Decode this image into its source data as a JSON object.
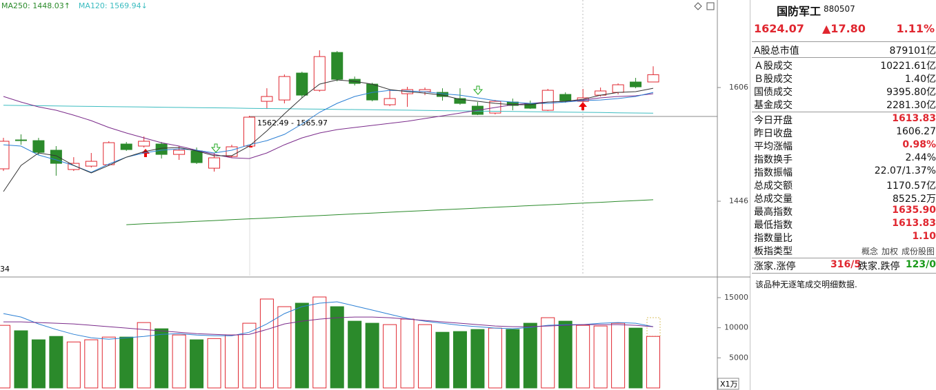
{
  "chart_data": [
    {
      "type": "candlestick",
      "open": [
        1491.6,
        1532.3,
        1531.3,
        1517.8,
        1490.6,
        1495.4,
        1497.4,
        1526.5,
        1523.6,
        1526.5,
        1511.9,
        1516.8,
        1492.5,
        1509.0,
        1523.6,
        1586.6,
        1588.5,
        1626.4,
        1602.1,
        1655.4,
        1617.6,
        1610.8,
        1581.8,
        1597.3,
        1600.2,
        1599.2,
        1590.5,
        1579.8,
        1570.1,
        1585.6,
        1583.7,
        1574.0,
        1596.3,
        1586.6,
        1595.3,
        1599.2,
        1613.8,
        1613.83
      ],
      "high": [
        1535.2,
        1540.1,
        1535.2,
        1523.6,
        1508.0,
        1513.9,
        1530.4,
        1529.4,
        1537.2,
        1529.4,
        1523.6,
        1521.6,
        1513.9,
        1525.5,
        1566.2,
        1605.0,
        1624.4,
        1628.3,
        1658.4,
        1657.4,
        1621.5,
        1612.8,
        1603.1,
        1607.0,
        1606.0,
        1605.0,
        1605.0,
        1585.6,
        1588.5,
        1590.5,
        1587.6,
        1604.1,
        1599.2,
        1604.1,
        1606.0,
        1611.8,
        1619.6,
        1635.9
      ],
      "low": [
        1488.6,
        1525.5,
        1510.9,
        1481.9,
        1488.6,
        1493.5,
        1496.4,
        1516.8,
        1521.6,
        1506.1,
        1504.2,
        1498.4,
        1487.7,
        1507.1,
        1521.6,
        1575.9,
        1583.7,
        1591.5,
        1600.2,
        1614.7,
        1608.9,
        1586.6,
        1579.8,
        1578.8,
        1595.3,
        1587.6,
        1581.8,
        1567.2,
        1568.2,
        1574.0,
        1575.9,
        1573.0,
        1584.7,
        1581.8,
        1593.4,
        1596.3,
        1605.0,
        1613.83
      ],
      "close": [
        1530.4,
        1531.3,
        1514.8,
        1499.3,
        1499.3,
        1502.2,
        1528.4,
        1518.7,
        1530.4,
        1511.9,
        1517.8,
        1500.3,
        1507.1,
        1522.6,
        1564.3,
        1593.4,
        1621.5,
        1595.3,
        1649.6,
        1617.6,
        1611.8,
        1588.5,
        1590.5,
        1603.1,
        1603.1,
        1593.4,
        1583.7,
        1568.2,
        1586.6,
        1580.8,
        1576.9,
        1602.1,
        1587.6,
        1591.5,
        1601.2,
        1609.9,
        1607.0,
        1624.07
      ],
      "up_color": "#e0262f",
      "down_color": "#2b8a2b",
      "ylim": [
        1341.3,
        1729.2
      ],
      "yticks": [
        1446,
        1606
      ],
      "lines": [
        {
          "label": "MA250: 1448.03↑",
          "color": "#2a8a2a",
          "values": [
            null,
            null,
            null,
            null,
            null,
            null,
            null,
            1413.0,
            1414.2,
            1415.3,
            1416.5,
            1417.7,
            1418.8,
            1420.0,
            1421.2,
            1422.3,
            1423.5,
            1424.7,
            1425.8,
            1427.0,
            1428.2,
            1429.3,
            1430.5,
            1431.7,
            1432.8,
            1434.0,
            1435.2,
            1436.3,
            1437.5,
            1438.7,
            1439.8,
            1441.0,
            1442.2,
            1443.4,
            1444.5,
            1445.7,
            1446.9,
            1448.03
          ]
        },
        {
          "label": "MA120: 1569.94↓",
          "color": "#3bbcc0",
          "values": [
            1581.0,
            1580.7,
            1580.4,
            1580.1,
            1579.8,
            1579.5,
            1579.2,
            1578.9,
            1578.6,
            1578.3,
            1578.0,
            1577.7,
            1577.4,
            1577.1,
            1576.8,
            1576.5,
            1576.2,
            1575.9,
            1575.6,
            1575.3,
            1575.0,
            1574.7,
            1574.4,
            1574.1,
            1573.8,
            1573.5,
            1573.2,
            1572.9,
            1572.6,
            1572.3,
            1572.0,
            1571.7,
            1571.4,
            1571.1,
            1570.8,
            1570.5,
            1570.2,
            1569.94
          ]
        },
        {
          "color": "#7a2a8a",
          "values": [
            1593.4,
            1585.6,
            1578.8,
            1574.0,
            1567.2,
            1559.4,
            1549.8,
            1542.0,
            1535.2,
            1528.4,
            1523.6,
            1517.8,
            1511.9,
            1507.1,
            1506.1,
            1513.9,
            1525.5,
            1535.2,
            1542.0,
            1546.8,
            1549.8,
            1552.7,
            1555.6,
            1558.5,
            1562.4,
            1566.2,
            1570.1,
            1574.0,
            1577.9,
            1581.8,
            1583.7,
            1585.6,
            1586.6,
            1588.5,
            1591.5,
            1593.4,
            1594.4,
            1597.3
          ]
        },
        {
          "color": "#2a7fd4",
          "values": [
            1525.5,
            1523.6,
            1511.0,
            1504.2,
            1496.4,
            1486.7,
            1498.4,
            1508.0,
            1513.9,
            1517.8,
            1519.7,
            1517.8,
            1513.9,
            1517.8,
            1525.5,
            1531.3,
            1540.1,
            1554.6,
            1571.1,
            1583.7,
            1593.4,
            1599.2,
            1602.1,
            1601.2,
            1600.2,
            1597.3,
            1595.3,
            1591.5,
            1587.6,
            1585.6,
            1583.7,
            1583.7,
            1585.6,
            1587.6,
            1588.5,
            1590.5,
            1593.4,
            1599.2
          ]
        },
        {
          "color": "#333333",
          "values": [
            1459.6,
            1496.4,
            1513.9,
            1510.0,
            1496.4,
            1485.8,
            1496.4,
            1508.0,
            1515.8,
            1520.6,
            1521.6,
            1516.8,
            1510.0,
            1510.0,
            1523.6,
            1544.9,
            1569.1,
            1591.5,
            1610.8,
            1616.7,
            1614.7,
            1610.8,
            1603.1,
            1600.2,
            1598.2,
            1595.3,
            1589.5,
            1586.6,
            1583.7,
            1581.8,
            1581.8,
            1585.6,
            1586.6,
            1589.5,
            1595.3,
            1599.2,
            1600.2,
            1605.0
          ]
        }
      ],
      "annotations": [
        "1562.49 - 1565.97",
        "34"
      ]
    },
    {
      "type": "bar",
      "values": [
        10400,
        9500,
        8000,
        8560,
        7640,
        8000,
        8450,
        8450,
        10860,
        9830,
        8800,
        8000,
        8200,
        8800,
        10750,
        14770,
        13500,
        14080,
        15110,
        13500,
        11090,
        10750,
        10520,
        11440,
        10520,
        9250,
        9370,
        9710,
        9940,
        9710,
        10750,
        11670,
        11090,
        10400,
        10290,
        10750,
        9940,
        8560
      ],
      "ylim": [
        0,
        18200
      ],
      "yticks": [
        5000,
        10000,
        15000
      ],
      "unit": "X1万",
      "lines": [
        {
          "color": "#2a7fd4",
          "values": [
            12356,
            11781,
            10632,
            9712,
            8908,
            8333,
            8103,
            8333,
            8563,
            8908,
            9023,
            8793,
            8678,
            8678,
            9253,
            10632,
            12356,
            13505,
            14080,
            14310,
            13620,
            12931,
            12241,
            11551,
            11092,
            10747,
            10402,
            10172,
            9942,
            9827,
            10057,
            10402,
            10517,
            10517,
            10747,
            10862,
            10747,
            10172
          ]
        },
        {
          "color": "#7a2a8a",
          "values": [
            10977,
            10977,
            10862,
            10747,
            10632,
            10402,
            10172,
            9942,
            9712,
            9483,
            9253,
            9023,
            8908,
            8793,
            8908,
            9712,
            10632,
            11092,
            11437,
            11666,
            11781,
            11781,
            11666,
            11437,
            11207,
            10977,
            10747,
            10517,
            10287,
            10172,
            10172,
            10287,
            10402,
            10517,
            10517,
            10517,
            10402,
            10172
          ]
        }
      ]
    }
  ],
  "quote_panel": {
    "name": "国防军工",
    "code": "880507",
    "price": "1624.07",
    "change": "▲17.80",
    "change_pct": "1.11%",
    "groups": [
      [
        {
          "label": "A股总市值",
          "value": "879101亿"
        }
      ],
      [
        {
          "label": "Ａ股成交",
          "value": "10221.61亿"
        },
        {
          "label": "Ｂ股成交",
          "value": "1.40亿"
        },
        {
          "label": "国债成交",
          "value": "9395.80亿"
        },
        {
          "label": "基金成交",
          "value": "2281.30亿"
        }
      ],
      [
        {
          "label": "今日开盘",
          "value": "1613.83",
          "color": "#e0262f"
        },
        {
          "label": "昨日收盘",
          "value": "1606.27"
        },
        {
          "label": "平均涨幅",
          "value": "0.98%",
          "color": "#e0262f"
        },
        {
          "label": "指数换手",
          "value": "2.44%"
        },
        {
          "label": "指数振幅",
          "value": "22.07/1.37%"
        },
        {
          "label": "总成交额",
          "value": "1170.57亿"
        },
        {
          "label": "总成交量",
          "value": "8525.2万"
        },
        {
          "label": "最高指数",
          "value": "1635.90",
          "color": "#e0262f"
        },
        {
          "label": "最低指数",
          "value": "1613.83",
          "color": "#e0262f"
        },
        {
          "label": "指数量比",
          "value": "1.10",
          "color": "#e0262f"
        }
      ]
    ],
    "type_row": {
      "label": "板指类型",
      "links": [
        "概念",
        "加权",
        "成份股图"
      ]
    },
    "breadth": {
      "up_label": "涨家.涨停",
      "up_value": "316/5",
      "down_label": "跌家.跌停",
      "down_value": "123/0"
    },
    "note": "该品种无逐笔成交明细数据."
  }
}
